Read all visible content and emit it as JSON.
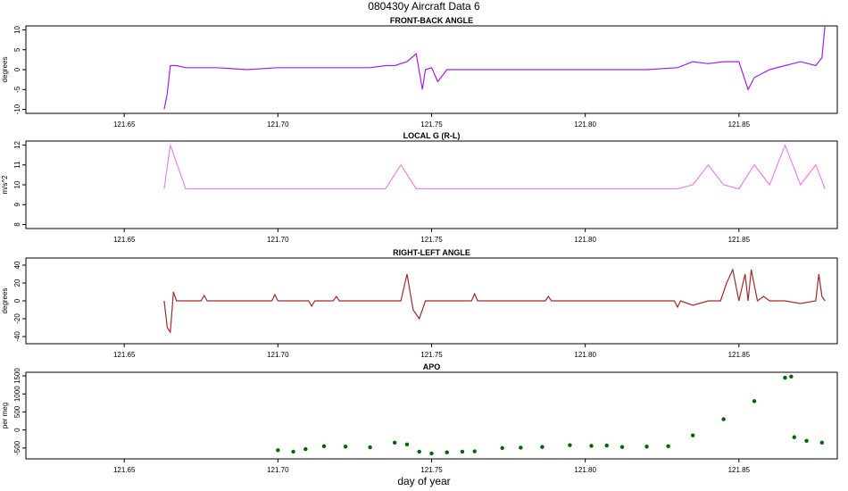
{
  "title": "080430y   Aircraft Data 6",
  "xlabel": "day of year",
  "chart_data": [
    {
      "type": "line",
      "title": "FRONT-BACK ANGLE",
      "ylabel": "degrees",
      "color": "#a020f0",
      "xlim": [
        121.618,
        121.882
      ],
      "ylim": [
        -11,
        11
      ],
      "xticks": [
        "121.65",
        "121.70",
        "121.75",
        "121.80",
        "121.85"
      ],
      "xtick_values": [
        121.65,
        121.7,
        121.75,
        121.8,
        121.85
      ],
      "yticks": [
        "-10",
        "-5",
        "0",
        "5",
        "10"
      ],
      "ytick_values": [
        -10,
        -5,
        0,
        5,
        10
      ],
      "series": [
        {
          "x": [
            121.663,
            121.664,
            121.665,
            121.667,
            121.67,
            121.675,
            121.68,
            121.69,
            121.7,
            121.71,
            121.72,
            121.73,
            121.735,
            121.738,
            121.742,
            121.745,
            121.747,
            121.748,
            121.75,
            121.752,
            121.755,
            121.76,
            121.77,
            121.78,
            121.79,
            121.8,
            121.81,
            121.82,
            121.83,
            121.835,
            121.84,
            121.845,
            121.85,
            121.853,
            121.855,
            121.86,
            121.865,
            121.87,
            121.875,
            121.877,
            121.878
          ],
          "y": [
            -10,
            -6,
            1,
            1,
            0.5,
            0.5,
            0.5,
            0,
            0.5,
            0.5,
            0.5,
            0.5,
            1,
            1,
            2,
            4,
            -5,
            0,
            0.5,
            -3,
            0,
            0,
            0,
            0,
            0,
            0,
            0,
            0,
            0.5,
            2,
            1.5,
            2,
            2,
            -5,
            -2,
            0,
            1,
            2,
            1,
            3,
            11
          ]
        }
      ]
    },
    {
      "type": "line",
      "title": "LOCAL G (R-L)",
      "ylabel": "m/s^2",
      "color": "#ee82ee",
      "xlim": [
        121.618,
        121.882
      ],
      "ylim": [
        7.8,
        12.2
      ],
      "xticks": [
        "121.65",
        "121.70",
        "121.75",
        "121.80",
        "121.85"
      ],
      "xtick_values": [
        121.65,
        121.7,
        121.75,
        121.8,
        121.85
      ],
      "yticks": [
        "8",
        "9",
        "10",
        "11",
        "12"
      ],
      "ytick_values": [
        8,
        9,
        10,
        11,
        12
      ],
      "series": [
        {
          "x": [
            121.663,
            121.665,
            121.67,
            121.675,
            121.68,
            121.69,
            121.7,
            121.71,
            121.72,
            121.73,
            121.735,
            121.74,
            121.745,
            121.75,
            121.76,
            121.77,
            121.78,
            121.79,
            121.8,
            121.81,
            121.82,
            121.83,
            121.835,
            121.84,
            121.845,
            121.85,
            121.855,
            121.86,
            121.865,
            121.87,
            121.875,
            121.878
          ],
          "y": [
            9.8,
            12,
            9.8,
            9.8,
            9.8,
            9.8,
            9.8,
            9.8,
            9.8,
            9.8,
            9.8,
            11,
            9.8,
            9.8,
            9.8,
            9.8,
            9.8,
            9.8,
            9.8,
            9.8,
            9.8,
            9.8,
            10,
            11,
            10,
            9.8,
            11,
            10,
            12,
            10,
            11,
            9.8
          ]
        }
      ]
    },
    {
      "type": "line",
      "title": "RIGHT-LEFT ANGLE",
      "ylabel": "degrees",
      "color": "#a52a2a",
      "xlim": [
        121.618,
        121.882
      ],
      "ylim": [
        -48,
        48
      ],
      "xticks": [
        "121.65",
        "121.70",
        "121.75",
        "121.80",
        "121.85"
      ],
      "xtick_values": [
        121.65,
        121.7,
        121.75,
        121.8,
        121.85
      ],
      "yticks": [
        "-40",
        "-20",
        "0",
        "20",
        "40"
      ],
      "ytick_values": [
        -40,
        -20,
        0,
        20,
        40
      ],
      "series": [
        {
          "x": [
            121.663,
            121.664,
            121.665,
            121.666,
            121.667,
            121.668,
            121.675,
            121.676,
            121.677,
            121.698,
            121.699,
            121.7,
            121.71,
            121.711,
            121.712,
            121.718,
            121.719,
            121.72,
            121.74,
            121.742,
            121.744,
            121.746,
            121.748,
            121.75,
            121.763,
            121.764,
            121.765,
            121.787,
            121.788,
            121.789,
            121.8,
            121.829,
            121.83,
            121.831,
            121.835,
            121.84,
            121.844,
            121.845,
            121.846,
            121.848,
            121.85,
            121.852,
            121.853,
            121.854,
            121.856,
            121.858,
            121.86,
            121.865,
            121.87,
            121.875,
            121.876,
            121.877,
            121.878
          ],
          "y": [
            0,
            -30,
            -35,
            10,
            0,
            0,
            0,
            6,
            0,
            0,
            7,
            0,
            0,
            -6,
            0,
            0,
            5,
            0,
            0,
            30,
            -10,
            -20,
            0,
            0,
            0,
            8,
            0,
            0,
            5,
            0,
            0,
            0,
            -7,
            0,
            -5,
            0,
            0,
            10,
            20,
            35,
            0,
            30,
            0,
            35,
            0,
            5,
            0,
            0,
            -3,
            0,
            30,
            5,
            0
          ]
        }
      ]
    },
    {
      "type": "scatter",
      "title": "APO",
      "ylabel": "per meg",
      "color": "#006400",
      "xlim": [
        121.618,
        121.882
      ],
      "ylim": [
        -800,
        1600
      ],
      "xticks": [
        "121.65",
        "121.70",
        "121.75",
        "121.80",
        "121.85"
      ],
      "xtick_values": [
        121.65,
        121.7,
        121.75,
        121.8,
        121.85
      ],
      "yticks": [
        "-500",
        "0",
        "500",
        "1000",
        "1500"
      ],
      "ytick_values": [
        -500,
        0,
        500,
        1000,
        1500
      ],
      "series": [
        {
          "x": [
            121.7,
            121.705,
            121.709,
            121.715,
            121.722,
            121.73,
            121.738,
            121.742,
            121.746,
            121.75,
            121.755,
            121.76,
            121.764,
            121.773,
            121.779,
            121.786,
            121.795,
            121.802,
            121.807,
            121.812,
            121.82,
            121.827,
            121.835,
            121.845,
            121.855,
            121.865,
            121.867,
            121.868,
            121.872,
            121.877
          ],
          "y": [
            -560,
            -600,
            -530,
            -450,
            -460,
            -480,
            -350,
            -400,
            -600,
            -650,
            -620,
            -600,
            -590,
            -500,
            -490,
            -470,
            -420,
            -440,
            -430,
            -470,
            -460,
            -450,
            -150,
            300,
            800,
            1450,
            1480,
            -200,
            -300,
            -350
          ]
        }
      ]
    }
  ]
}
